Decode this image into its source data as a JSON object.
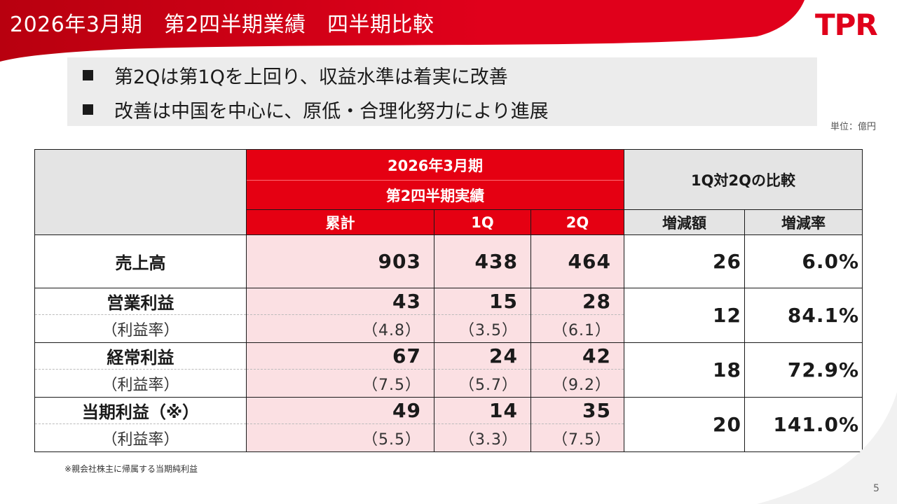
{
  "header": {
    "title": "2026年3月期　第2四半期業績　四半期比較",
    "logo_text": "TPR",
    "accent_color": "#e0001b"
  },
  "summary": {
    "bullets": [
      "第2Qは第1Qを上回り、収益水準は着実に改善",
      "改善は中国を中心に、原低・合理化努力により進展"
    ]
  },
  "unit_label": "単位：億円",
  "table": {
    "period_header": "2026年3月期",
    "period_subheader": "第2四半期実績",
    "comparison_header": "1Q対2Qの比較",
    "columns": [
      "累計",
      "1Q",
      "2Q",
      "増減額",
      "増減率"
    ],
    "rows": [
      {
        "label": "売上高",
        "cumulative": "903",
        "q1": "438",
        "q2": "464",
        "diff": "26",
        "rate": "6.0%"
      },
      {
        "label": "営業利益",
        "sublabel": "（利益率）",
        "cumulative": "43",
        "q1": "15",
        "q2": "28",
        "cumulative_margin": "（4.8）",
        "q1_margin": "（3.5）",
        "q2_margin": "（6.1）",
        "diff": "12",
        "rate": "84.1%"
      },
      {
        "label": "経常利益",
        "sublabel": "（利益率）",
        "cumulative": "67",
        "q1": "24",
        "q2": "42",
        "cumulative_margin": "（7.5）",
        "q1_margin": "（5.7）",
        "q2_margin": "（9.2）",
        "diff": "18",
        "rate": "72.9%"
      },
      {
        "label": "当期利益（※）",
        "sublabel": "（利益率）",
        "cumulative": "49",
        "q1": "14",
        "q2": "35",
        "cumulative_margin": "（5.5）",
        "q1_margin": "（3.3）",
        "q2_margin": "（7.5）",
        "diff": "20",
        "rate": "141.0%"
      }
    ]
  },
  "footnote": "※親会社株主に帰属する当期純利益",
  "page_number": "5"
}
